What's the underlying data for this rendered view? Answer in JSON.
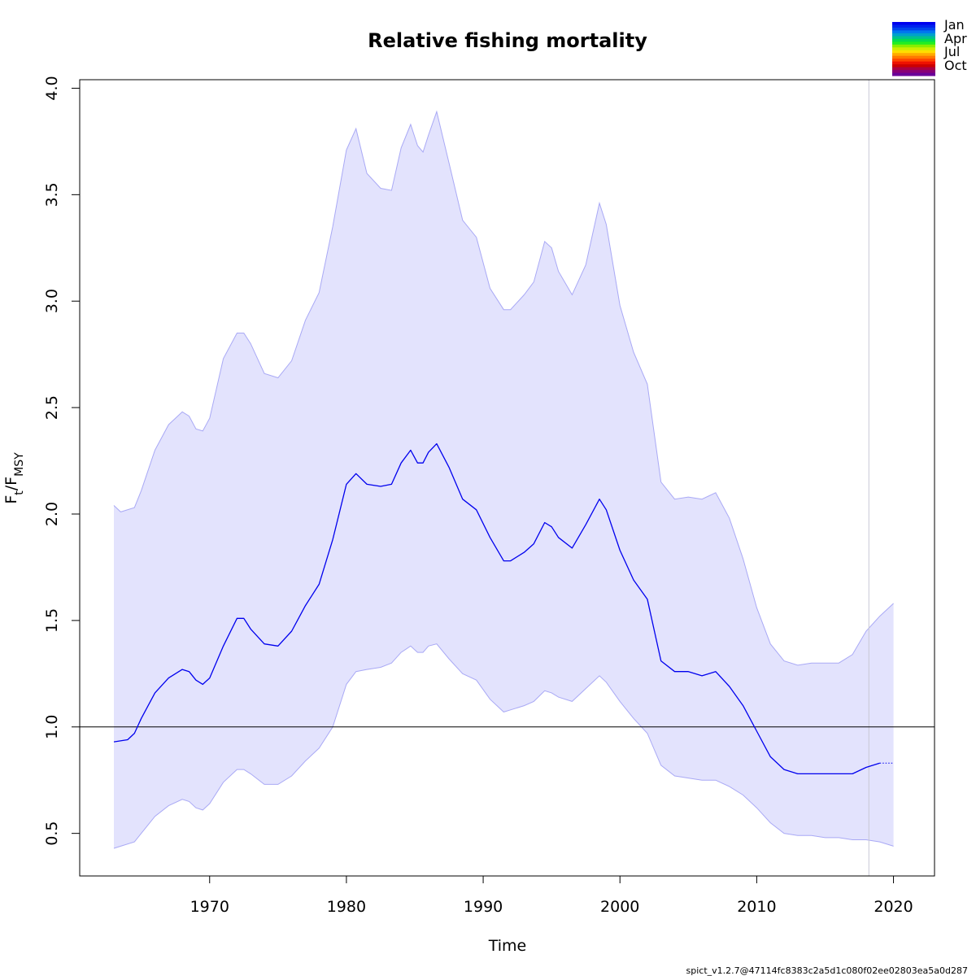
{
  "chart_data": {
    "type": "line",
    "title": "Relative fishing mortality",
    "xlabel": "Time",
    "ylabel": {
      "base": "F",
      "sub1": "t",
      "sep": "/F",
      "sub2": "MSY"
    },
    "xlim": [
      1960.5,
      2023
    ],
    "ylim": [
      0.3,
      4.04
    ],
    "xticks": [
      1970,
      1980,
      1990,
      2000,
      2010,
      2020
    ],
    "yticks": [
      0.5,
      1.0,
      1.5,
      2.0,
      2.5,
      3.0,
      3.5,
      4.0
    ],
    "xtick_labels": [
      "1970",
      "1980",
      "1990",
      "2000",
      "2010",
      "2020"
    ],
    "ytick_labels": [
      "0.5",
      "1.0",
      "1.5",
      "2.0",
      "2.5",
      "3.0",
      "3.5",
      "4.0"
    ],
    "reference_line_y": 1.0,
    "vertical_line_x": 2018.2,
    "colors": {
      "estimate": "#0000ee",
      "band_fill": "#e3e3fd",
      "band_edge": "#a9a9f5",
      "reference": "#000000",
      "vertical": "#c8c8d4"
    },
    "series": [
      {
        "role": "estimate",
        "x": [
          1963,
          1964,
          1964.5,
          1965,
          1966,
          1967,
          1968,
          1968.5,
          1969,
          1969.5,
          1970,
          1971,
          1972,
          1972.5,
          1973,
          1974,
          1975,
          1976,
          1977,
          1978,
          1979,
          1980,
          1980.7,
          1981.5,
          1982.5,
          1983.3,
          1984,
          1984.7,
          1985.2,
          1985.6,
          1986,
          1986.6,
          1987.5,
          1988.5,
          1989.5,
          1990.5,
          1991.5,
          1992,
          1993,
          1993.7,
          1994.5,
          1995,
          1995.5,
          1996.5,
          1997.5,
          1998.5,
          1999,
          2000,
          2001,
          2002,
          2003,
          2004,
          2005,
          2006,
          2007,
          2008,
          2009,
          2010,
          2011,
          2012,
          2013,
          2014,
          2015,
          2016,
          2017,
          2018,
          2019
        ],
        "y": [
          0.93,
          0.94,
          0.97,
          1.04,
          1.16,
          1.23,
          1.27,
          1.26,
          1.22,
          1.2,
          1.23,
          1.38,
          1.51,
          1.51,
          1.46,
          1.39,
          1.38,
          1.45,
          1.57,
          1.67,
          1.88,
          2.14,
          2.19,
          2.14,
          2.13,
          2.14,
          2.24,
          2.3,
          2.24,
          2.24,
          2.29,
          2.33,
          2.22,
          2.07,
          2.02,
          1.89,
          1.78,
          1.78,
          1.82,
          1.86,
          1.96,
          1.94,
          1.89,
          1.84,
          1.95,
          2.07,
          2.02,
          1.83,
          1.69,
          1.6,
          1.31,
          1.26,
          1.26,
          1.24,
          1.26,
          1.19,
          1.1,
          0.98,
          0.86,
          0.8,
          0.78,
          0.78,
          0.78,
          0.78,
          0.78,
          0.81,
          0.83
        ]
      },
      {
        "role": "forecast",
        "x": [
          2019,
          2020
        ],
        "y": [
          0.83,
          0.83
        ]
      },
      {
        "role": "upper_ci",
        "x": [
          1963,
          1963.5,
          1964.5,
          1965,
          1966,
          1967,
          1968,
          1968.5,
          1969,
          1969.5,
          1970,
          1971,
          1972,
          1972.5,
          1973,
          1974,
          1975,
          1976,
          1977,
          1978,
          1979,
          1980,
          1980.7,
          1981.5,
          1982.5,
          1983.3,
          1984,
          1984.7,
          1985.2,
          1985.6,
          1986,
          1986.6,
          1987.5,
          1988.5,
          1989.5,
          1990.5,
          1991.5,
          1992,
          1993,
          1993.7,
          1994.5,
          1995,
          1995.5,
          1996.5,
          1997.5,
          1998.5,
          1999,
          2000,
          2001,
          2002,
          2003,
          2004,
          2005,
          2006,
          2007,
          2008,
          2009,
          2010,
          2011,
          2012,
          2013,
          2014,
          2015,
          2016,
          2017,
          2018,
          2019,
          2020
        ],
        "y": [
          2.04,
          2.01,
          2.03,
          2.11,
          2.3,
          2.42,
          2.48,
          2.46,
          2.4,
          2.39,
          2.45,
          2.73,
          2.85,
          2.85,
          2.8,
          2.66,
          2.64,
          2.72,
          2.91,
          3.04,
          3.35,
          3.71,
          3.81,
          3.6,
          3.53,
          3.52,
          3.72,
          3.83,
          3.73,
          3.7,
          3.78,
          3.89,
          3.65,
          3.38,
          3.3,
          3.06,
          2.96,
          2.96,
          3.03,
          3.09,
          3.28,
          3.25,
          3.14,
          3.03,
          3.17,
          3.46,
          3.36,
          2.98,
          2.76,
          2.61,
          2.15,
          2.07,
          2.08,
          2.07,
          2.1,
          1.98,
          1.79,
          1.56,
          1.39,
          1.31,
          1.29,
          1.3,
          1.3,
          1.3,
          1.34,
          1.45,
          1.52,
          1.58
        ]
      },
      {
        "role": "lower_ci",
        "x": [
          1963,
          1963.5,
          1964.5,
          1965,
          1966,
          1967,
          1968,
          1968.5,
          1969,
          1969.5,
          1970,
          1971,
          1972,
          1972.5,
          1973,
          1974,
          1975,
          1976,
          1977,
          1978,
          1979,
          1980,
          1980.7,
          1981.5,
          1982.5,
          1983.3,
          1984,
          1984.7,
          1985.2,
          1985.6,
          1986,
          1986.6,
          1987.5,
          1988.5,
          1989.5,
          1990.5,
          1991.5,
          1992,
          1993,
          1993.7,
          1994.5,
          1995,
          1995.5,
          1996.5,
          1997.5,
          1998.5,
          1999,
          2000,
          2001,
          2002,
          2003,
          2004,
          2005,
          2006,
          2007,
          2008,
          2009,
          2010,
          2011,
          2012,
          2013,
          2014,
          2015,
          2016,
          2017,
          2018,
          2019,
          2020
        ],
        "y": [
          0.43,
          0.44,
          0.46,
          0.5,
          0.58,
          0.63,
          0.66,
          0.65,
          0.62,
          0.61,
          0.64,
          0.74,
          0.8,
          0.8,
          0.78,
          0.73,
          0.73,
          0.77,
          0.84,
          0.9,
          1.0,
          1.2,
          1.26,
          1.27,
          1.28,
          1.3,
          1.35,
          1.38,
          1.35,
          1.35,
          1.38,
          1.39,
          1.32,
          1.25,
          1.22,
          1.13,
          1.07,
          1.08,
          1.1,
          1.12,
          1.17,
          1.16,
          1.14,
          1.12,
          1.18,
          1.24,
          1.21,
          1.12,
          1.04,
          0.97,
          0.82,
          0.77,
          0.76,
          0.75,
          0.75,
          0.72,
          0.68,
          0.62,
          0.55,
          0.5,
          0.49,
          0.49,
          0.48,
          0.48,
          0.47,
          0.47,
          0.46,
          0.44
        ]
      }
    ],
    "legend": {
      "placement": "top-right",
      "labels": [
        "Jan",
        "Apr",
        "Jul",
        "Oct"
      ],
      "colors": [
        "#0000ee",
        "#0022ee",
        "#0044ee",
        "#0077ee",
        "#00a0cc",
        "#00c090",
        "#00dd50",
        "#22ee22",
        "#88ee00",
        "#ccee00",
        "#ffdd00",
        "#ffaa00",
        "#ff7700",
        "#ff4400",
        "#ee1100",
        "#cc0000",
        "#aa0044",
        "#880077",
        "#6a0099"
      ]
    }
  },
  "footer": "spict_v1.2.7@47114fc8383c2a5d1c080f02ee02803ea5a0d287"
}
